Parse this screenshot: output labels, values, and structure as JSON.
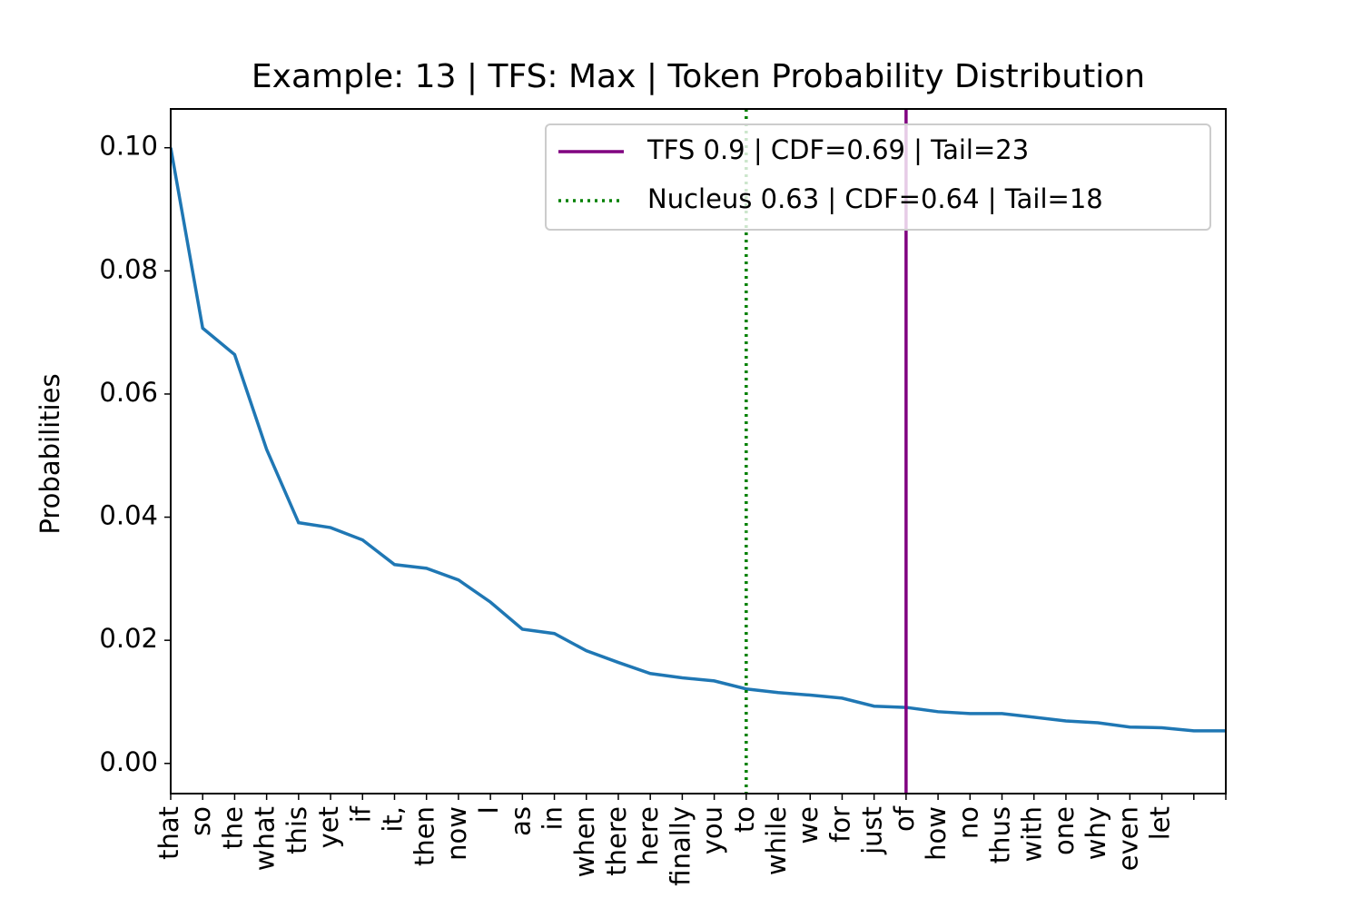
{
  "chart_data": {
    "type": "line",
    "title": "Example: 13 | TFS: Max | Token Probability Distribution",
    "y_label": "Probabilities",
    "categories": [
      "that",
      "so",
      "the",
      "what",
      "this",
      "yet",
      "if",
      "it,",
      "then",
      "now",
      "I",
      "as",
      "in",
      "when",
      "there",
      "here",
      "finally",
      "you",
      "to",
      "while",
      "we",
      "for",
      "just",
      "of",
      "how",
      "no",
      "thus",
      "with",
      "one",
      "why",
      "even",
      "let",
      null,
      null
    ],
    "series": [
      {
        "color": "#1f77b4",
        "values": [
          0.1,
          0.0707,
          0.0664,
          0.051,
          0.0391,
          0.0383,
          0.0363,
          0.0323,
          0.0317,
          0.0298,
          0.0262,
          0.0218,
          0.0211,
          0.0183,
          0.0164,
          0.0146,
          0.0139,
          0.0134,
          0.0121,
          0.0115,
          0.0111,
          0.0106,
          0.0093,
          0.0091,
          0.0084,
          0.0081,
          0.0081,
          0.0075,
          0.0069,
          0.0066,
          0.0059,
          0.0058,
          0.0053,
          0.0053
        ]
      }
    ],
    "vlines": [
      {
        "name": "TFS 0.9 | CDF=0.69 | Tail=23",
        "x": 23,
        "color": "#800080",
        "style": "solid"
      },
      {
        "name": "Nucleus 0.63 | CDF=0.64 | Tail=18",
        "x": 18,
        "color": "#008000",
        "style": "dotted"
      }
    ],
    "xlim": [
      0,
      33
    ],
    "ylim": [
      -0.0049,
      0.1063
    ],
    "yticks": [
      {
        "value": 0,
        "label": "0.00"
      },
      {
        "value": 0.02,
        "label": "0.02"
      },
      {
        "value": 0.04,
        "label": "0.04"
      },
      {
        "value": 0.06,
        "label": "0.06"
      },
      {
        "value": 0.08,
        "label": "0.08"
      },
      {
        "value": 0.1,
        "label": "0.10"
      }
    ],
    "legend": "upper right"
  }
}
